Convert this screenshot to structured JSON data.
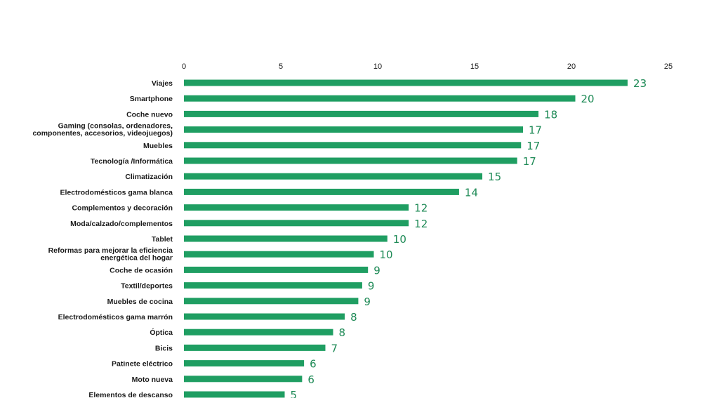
{
  "chart_data": {
    "type": "bar",
    "orientation": "horizontal",
    "title": "",
    "xlabel": "",
    "ylabel": "",
    "xlim": [
      0,
      25
    ],
    "ticks": [
      0,
      5,
      10,
      15,
      20,
      25
    ],
    "tick_position": "top",
    "grid": false,
    "bar_color": "#1f9e62",
    "value_label_color": "#1e8a56",
    "categories": [
      [
        "Viajes"
      ],
      [
        "Smartphone"
      ],
      [
        "Coche nuevo"
      ],
      [
        "Gaming (consolas, ordenadores,",
        "componentes, accesorios, videojuegos)"
      ],
      [
        "Muebles"
      ],
      [
        "Tecnología /Informática"
      ],
      [
        "Climatización"
      ],
      [
        "Electrodomésticos gama blanca"
      ],
      [
        "Complementos y decoración"
      ],
      [
        "Moda/calzado/complementos"
      ],
      [
        "Tablet"
      ],
      [
        "Reformas para mejorar la eficiencia",
        "energética del hogar"
      ],
      [
        "Coche de ocasión"
      ],
      [
        "Textil/deportes"
      ],
      [
        "Muebles de cocina"
      ],
      [
        "Electrodomésticos gama marrón"
      ],
      [
        "Óptica"
      ],
      [
        "Bicis"
      ],
      [
        "Patinete eléctrico"
      ],
      [
        "Moto nueva"
      ],
      [
        "Elementos de descanso"
      ]
    ],
    "values": [
      22.9,
      20.2,
      18.3,
      17.5,
      17.4,
      17.2,
      15.4,
      14.2,
      11.6,
      11.6,
      10.5,
      9.8,
      9.5,
      9.2,
      9.0,
      8.3,
      7.7,
      7.3,
      6.2,
      6.1,
      5.2
    ],
    "value_labels": [
      "23",
      "20",
      "18",
      "17",
      "17",
      "17",
      "15",
      "14",
      "12",
      "12",
      "10",
      "10",
      "9",
      "9",
      "9",
      "8",
      "8",
      "7",
      "6",
      "6",
      "5"
    ]
  }
}
